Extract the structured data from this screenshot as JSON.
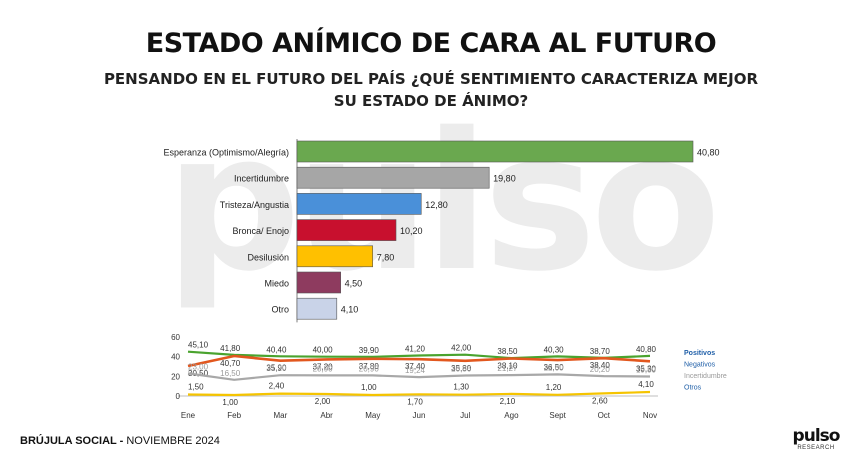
{
  "header": {
    "title": "ESTADO ANÍMICO DE CARA AL FUTURO",
    "subtitle_line1": "PENSANDO EN EL FUTURO DEL PAÍS ¿QUÉ SENTIMIENTO CARACTERIZA MEJOR",
    "subtitle_line2": "SU ESTADO DE ÁNIMO?"
  },
  "watermark": "pulso",
  "footer": {
    "brand": "BRÚJULA SOCIAL -",
    "date": "NOVIEMBRE 2024"
  },
  "logo": {
    "word": "pulso",
    "sub": "RESEARCH"
  },
  "chart_data": [
    {
      "type": "bar",
      "orientation": "horizontal",
      "categories": [
        "Esperanza (Optimismo/Alegría)",
        "Incertidumbre",
        "Tristeza/Angustia",
        "Bronca/ Enojo",
        "Desilusión",
        "Miedo",
        "Otro"
      ],
      "values": [
        40.8,
        19.8,
        12.8,
        10.2,
        7.8,
        4.5,
        4.1
      ],
      "value_labels": [
        "40,80",
        "19,80",
        "12,80",
        "10,20",
        "7,80",
        "4,50",
        "4,10"
      ],
      "colors": [
        "#6aa84f",
        "#a6a6a6",
        "#4a90d9",
        "#c8102e",
        "#ffc000",
        "#8e3b5f",
        "#c9d3e8"
      ]
    },
    {
      "type": "line",
      "categories": [
        "Ene",
        "Feb",
        "Mar",
        "Abr",
        "May",
        "Jun",
        "Jul",
        "Ago",
        "Sept",
        "Oct",
        "Nov"
      ],
      "ylim": [
        0,
        60
      ],
      "yticks": [
        "0",
        "20",
        "40",
        "60"
      ],
      "legend_position": "right",
      "series": [
        {
          "name": "Positivos",
          "color": "#4aa32e",
          "values": [
            45.1,
            41.8,
            40.4,
            40.0,
            39.9,
            41.2,
            42.0,
            38.5,
            40.3,
            38.7,
            40.8
          ],
          "labels": [
            "45,10",
            "41,80",
            "40,40",
            "40,00",
            "39,90",
            "41,20",
            "42,00",
            "38,50",
            "40,30",
            "38,70",
            "40,80"
          ]
        },
        {
          "name": "Negativos",
          "color": "#e2571e",
          "values": [
            30.5,
            40.7,
            35.9,
            37.2,
            37.8,
            37.4,
            35.8,
            38.1,
            36.5,
            38.4,
            35.3
          ],
          "labels": [
            "30,50",
            "40,70",
            "35,90",
            "37,20",
            "37,80",
            "37,40",
            "35,80",
            "38,10",
            "36,50",
            "38,40",
            "35,30"
          ]
        },
        {
          "name": "Incertidumbre",
          "color": "#a8a8a8",
          "values": [
            23.0,
            16.5,
            21.2,
            20.9,
            20.9,
            19.24,
            20.86,
            21.27,
            22.0,
            20.2,
            19.8
          ],
          "labels": [
            "23,00",
            "16,50",
            "21,20",
            "20,90",
            "20,90",
            "19,24",
            "20,86",
            "21,27",
            "22,00",
            "20,20",
            "19,80"
          ]
        },
        {
          "name": "Otros",
          "color": "#f5c400",
          "values": [
            1.5,
            1.0,
            2.4,
            2.0,
            1.0,
            1.7,
            1.3,
            2.1,
            1.2,
            2.6,
            4.1
          ],
          "labels": [
            "1,50",
            "1,00",
            "2,40",
            "2,00",
            "1,00",
            "1,70",
            "1,30",
            "2,10",
            "1,20",
            "2,60",
            "4,10"
          ]
        }
      ],
      "legend_colors": [
        "#1f5fa8",
        "#1f5fa8",
        "#9a9a9a",
        "#1f5fa8"
      ]
    }
  ]
}
